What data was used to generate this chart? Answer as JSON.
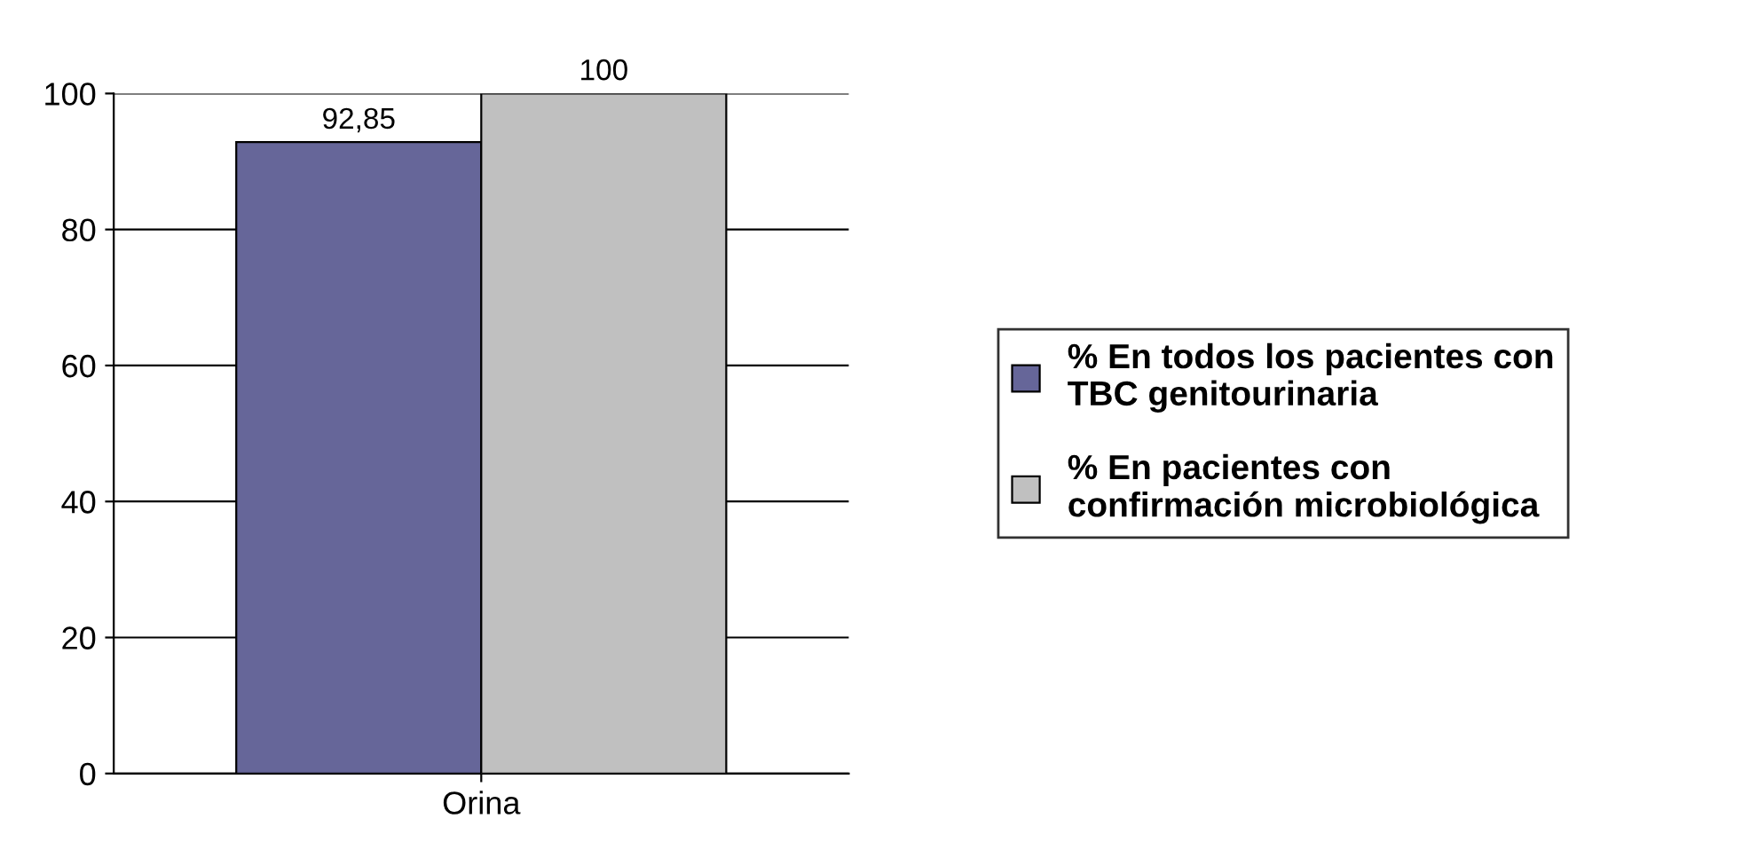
{
  "chart_data": {
    "type": "bar",
    "categories": [
      "Orina"
    ],
    "series": [
      {
        "name": "% En todos los pacientes con\nTBC genitourinaria",
        "color": "#666699",
        "values": [
          92.85
        ],
        "value_labels": [
          "92,85"
        ]
      },
      {
        "name": "% En pacientes con\nconfirmación microbiológica",
        "color": "#c0c0c0",
        "values": [
          100
        ],
        "value_labels": [
          "100"
        ]
      }
    ],
    "ylim": [
      0,
      100
    ],
    "yticks": [
      0,
      20,
      40,
      60,
      80,
      100
    ],
    "grid": "y",
    "legend": "right"
  }
}
